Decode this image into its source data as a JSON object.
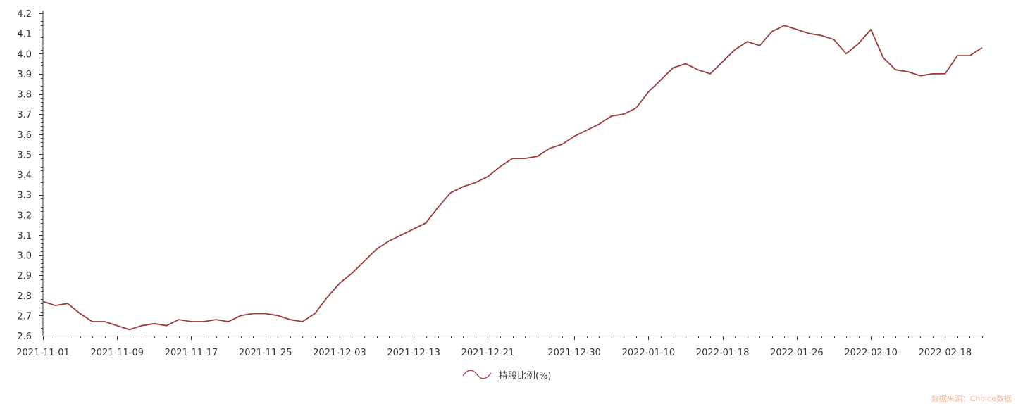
{
  "chart_data": {
    "type": "line",
    "x": [
      "2021-11-01",
      "2021-11-02",
      "2021-11-03",
      "2021-11-04",
      "2021-11-05",
      "2021-11-08",
      "2021-11-09",
      "2021-11-10",
      "2021-11-11",
      "2021-11-12",
      "2021-11-15",
      "2021-11-16",
      "2021-11-17",
      "2021-11-18",
      "2021-11-19",
      "2021-11-22",
      "2021-11-23",
      "2021-11-24",
      "2021-11-25",
      "2021-11-26",
      "2021-11-29",
      "2021-11-30",
      "2021-12-01",
      "2021-12-02",
      "2021-12-03",
      "2021-12-06",
      "2021-12-07",
      "2021-12-08",
      "2021-12-09",
      "2021-12-10",
      "2021-12-13",
      "2021-12-14",
      "2021-12-15",
      "2021-12-16",
      "2021-12-17",
      "2021-12-20",
      "2021-12-21",
      "2021-12-22",
      "2021-12-23",
      "2021-12-24",
      "2021-12-27",
      "2021-12-28",
      "2021-12-29",
      "2021-12-30",
      "2021-12-31",
      "2022-01-04",
      "2022-01-05",
      "2022-01-06",
      "2022-01-07",
      "2022-01-10",
      "2022-01-11",
      "2022-01-12",
      "2022-01-13",
      "2022-01-14",
      "2022-01-17",
      "2022-01-18",
      "2022-01-19",
      "2022-01-20",
      "2022-01-21",
      "2022-01-24",
      "2022-01-25",
      "2022-01-26",
      "2022-01-27",
      "2022-01-28",
      "2022-02-07",
      "2022-02-08",
      "2022-02-09",
      "2022-02-10",
      "2022-02-11",
      "2022-02-14",
      "2022-02-15",
      "2022-02-16",
      "2022-02-17",
      "2022-02-18",
      "2022-02-21",
      "2022-02-22",
      "2022-02-23"
    ],
    "series": [
      {
        "name": "持股比例(%)",
        "color": "#9a3a3a",
        "values": [
          2.77,
          2.75,
          2.76,
          2.71,
          2.67,
          2.67,
          2.65,
          2.63,
          2.65,
          2.66,
          2.65,
          2.68,
          2.67,
          2.67,
          2.68,
          2.67,
          2.7,
          2.71,
          2.71,
          2.7,
          2.68,
          2.67,
          2.71,
          2.79,
          2.86,
          2.91,
          2.97,
          3.03,
          3.07,
          3.1,
          3.13,
          3.16,
          3.24,
          3.31,
          3.34,
          3.36,
          3.39,
          3.44,
          3.48,
          3.48,
          3.49,
          3.53,
          3.55,
          3.59,
          3.62,
          3.65,
          3.69,
          3.7,
          3.73,
          3.81,
          3.87,
          3.93,
          3.95,
          3.92,
          3.9,
          3.96,
          4.02,
          4.06,
          4.04,
          4.11,
          4.14,
          4.12,
          4.1,
          4.09,
          4.07,
          4.0,
          4.05,
          4.12,
          3.98,
          3.92,
          3.91,
          3.89,
          3.9,
          3.9,
          3.99,
          3.99,
          4.03
        ]
      }
    ],
    "xticks": [
      "2021-11-01",
      "2021-11-09",
      "2021-11-17",
      "2021-11-25",
      "2021-12-03",
      "2021-12-13",
      "2021-12-21",
      "2021-12-30",
      "2022-01-10",
      "2022-01-18",
      "2022-01-26",
      "2022-02-10",
      "2022-02-18"
    ],
    "yticks": [
      "2.6",
      "2.7",
      "2.8",
      "2.9",
      "3.0",
      "3.1",
      "3.2",
      "3.3",
      "3.4",
      "3.5",
      "3.6",
      "3.7",
      "3.8",
      "3.9",
      "4.0",
      "4.1",
      "4.2"
    ],
    "ylim": [
      2.6,
      4.2
    ],
    "grid": false,
    "legend": "bottom-center"
  },
  "legend": {
    "label": "持股比例(%)",
    "icon": "wave-line-icon"
  },
  "source_text": "数据来源：Choice数据"
}
